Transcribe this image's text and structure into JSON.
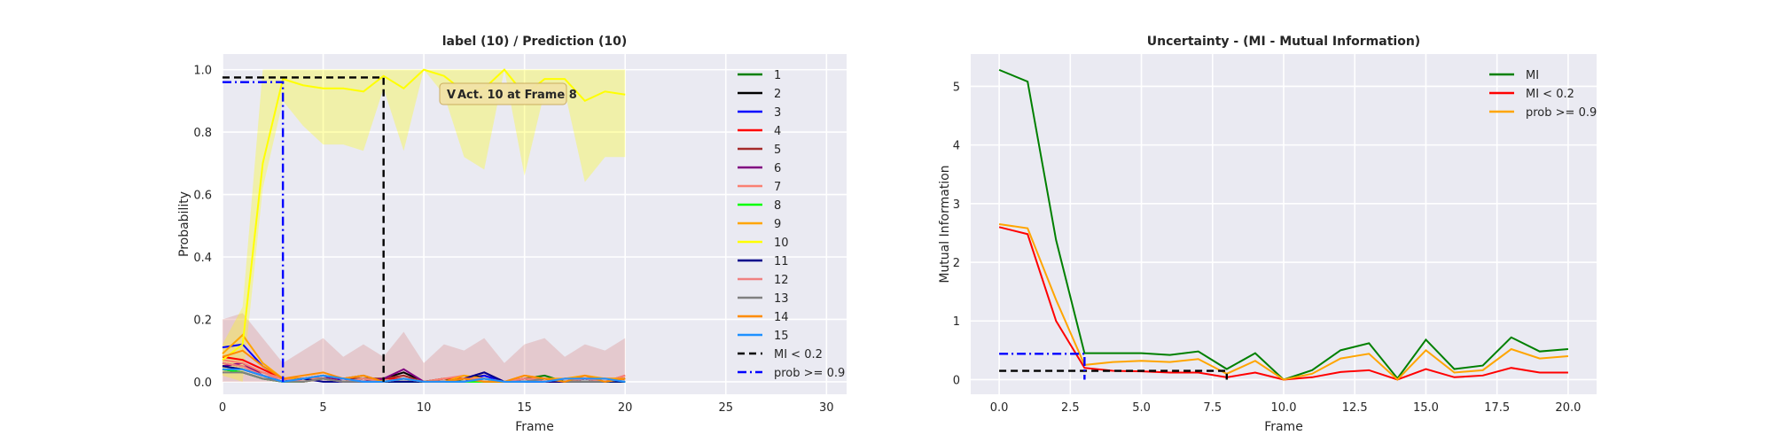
{
  "chart_data": [
    {
      "type": "line",
      "title": "label (10) / Prediction (10)",
      "xlabel": "Frame",
      "ylabel": "Probability",
      "xlim": [
        0,
        31
      ],
      "ylim": [
        -0.04,
        1.05
      ],
      "xticks": [
        "0",
        "5",
        "10",
        "15",
        "20",
        "25",
        "30"
      ],
      "xtick_values": [
        0,
        5,
        10,
        15,
        20,
        25,
        30
      ],
      "yticks": [
        "0.0",
        "0.2",
        "0.4",
        "0.6",
        "0.8",
        "1.0"
      ],
      "ytick_values": [
        0,
        0.2,
        0.4,
        0.6,
        0.8,
        1.0
      ],
      "grid": true,
      "legend_position": "right-outside",
      "annotation": {
        "badge": "V",
        "text": "Act. 10 at Frame 8",
        "x": 8
      },
      "x": [
        0,
        1,
        2,
        3,
        4,
        5,
        6,
        7,
        8,
        9,
        10,
        11,
        12,
        13,
        14,
        15,
        16,
        17,
        18,
        19,
        20
      ],
      "series": [
        {
          "name": "1",
          "color": "#008000",
          "values": [
            0.05,
            0.04,
            0.02,
            0,
            0.01,
            0.02,
            0.01,
            0.02,
            0,
            0.01,
            0,
            0.01,
            0,
            0.01,
            0,
            0.01,
            0.02,
            0,
            0.01,
            0,
            0.01
          ]
        },
        {
          "name": "2",
          "color": "#000000",
          "values": [
            0.04,
            0.03,
            0.01,
            0,
            0.01,
            0.01,
            0,
            0.01,
            0.01,
            0.03,
            0,
            0,
            0.01,
            0.02,
            0,
            0.01,
            0,
            0.01,
            0.01,
            0,
            0.01
          ]
        },
        {
          "name": "3",
          "color": "#0000ff",
          "values": [
            0.11,
            0.12,
            0.05,
            0.01,
            0.01,
            0.02,
            0,
            0.01,
            0,
            0,
            0,
            0,
            0,
            0.02,
            0,
            0,
            0,
            0,
            0.01,
            0,
            0.01
          ]
        },
        {
          "name": "4",
          "color": "#ff0000",
          "values": [
            0.08,
            0.07,
            0.04,
            0.01,
            0,
            0.01,
            0.01,
            0,
            0.01,
            0.01,
            0,
            0.01,
            0.01,
            0,
            0,
            0.01,
            0,
            0,
            0.01,
            0,
            0.02
          ]
        },
        {
          "name": "5",
          "color": "#a52a2a",
          "values": [
            0.06,
            0.05,
            0.03,
            0.01,
            0.01,
            0.01,
            0.01,
            0.01,
            0.01,
            0.02,
            0,
            0,
            0.01,
            0.01,
            0,
            0.01,
            0.01,
            0,
            0.01,
            0.01,
            0.01
          ]
        },
        {
          "name": "6",
          "color": "#800080",
          "values": [
            0.05,
            0.06,
            0.02,
            0,
            0.01,
            0.01,
            0.01,
            0,
            0.01,
            0.04,
            0,
            0,
            0.01,
            0.03,
            0,
            0,
            0.01,
            0,
            0.01,
            0,
            0.01
          ]
        },
        {
          "name": "7",
          "color": "#fa8072",
          "values": [
            0.07,
            0.06,
            0.03,
            0.01,
            0.01,
            0.01,
            0,
            0.01,
            0,
            0.01,
            0,
            0.01,
            0.02,
            0,
            0,
            0.01,
            0.01,
            0,
            0.01,
            0,
            0.02
          ]
        },
        {
          "name": "8",
          "color": "#00ff00",
          "values": [
            0.04,
            0.03,
            0.01,
            0,
            0,
            0.01,
            0,
            0.01,
            0,
            0,
            0,
            0,
            0,
            0,
            0,
            0,
            0.01,
            0,
            0,
            0,
            0
          ]
        },
        {
          "name": "9",
          "color": "#ffa500",
          "values": [
            0.09,
            0.15,
            0.06,
            0.01,
            0.01,
            0.02,
            0.01,
            0.02,
            0,
            0.01,
            0,
            0,
            0.02,
            0.01,
            0,
            0.02,
            0.01,
            0.01,
            0.02,
            0.01,
            0.01
          ]
        },
        {
          "name": "10",
          "color": "#ffff00",
          "values": [
            0.07,
            0.12,
            0.7,
            0.97,
            0.95,
            0.94,
            0.94,
            0.93,
            0.98,
            0.94,
            1.0,
            0.98,
            0.93,
            0.94,
            1.0,
            0.92,
            0.97,
            0.97,
            0.9,
            0.93,
            0.92
          ]
        },
        {
          "name": "11",
          "color": "#00008b",
          "values": [
            0.05,
            0.04,
            0.02,
            0,
            0.01,
            0,
            0,
            0,
            0,
            0,
            0,
            0,
            0.01,
            0.03,
            0,
            0,
            0,
            0,
            0,
            0,
            0
          ]
        },
        {
          "name": "12",
          "color": "#f08080",
          "values": [
            0.06,
            0.05,
            0.02,
            0.01,
            0,
            0.01,
            0,
            0.01,
            0,
            0.01,
            0,
            0,
            0.01,
            0.01,
            0,
            0.01,
            0,
            0.01,
            0.01,
            0,
            0.01
          ]
        },
        {
          "name": "13",
          "color": "#808080",
          "values": [
            0.03,
            0.03,
            0.01,
            0,
            0,
            0.01,
            0,
            0,
            0,
            0.01,
            0,
            0,
            0,
            0.01,
            0,
            0,
            0.01,
            0,
            0,
            0,
            0.01
          ]
        },
        {
          "name": "14",
          "color": "#ff8c00",
          "values": [
            0.08,
            0.1,
            0.05,
            0.01,
            0.02,
            0.03,
            0.01,
            0.02,
            0,
            0.01,
            0,
            0,
            0.01,
            0,
            0,
            0.02,
            0.01,
            0,
            0.02,
            0,
            0.01
          ]
        },
        {
          "name": "15",
          "color": "#1e90ff",
          "values": [
            0.04,
            0.04,
            0.02,
            0,
            0.01,
            0.02,
            0.01,
            0,
            0,
            0.01,
            0,
            0,
            0,
            0.01,
            0,
            0,
            0,
            0.01,
            0.01,
            0.01,
            0
          ]
        }
      ],
      "band_upper": [
        0.12,
        0.24,
        1.0,
        1.0,
        1.0,
        1.0,
        1.0,
        1.0,
        1.0,
        1.0,
        1.0,
        1.0,
        1.0,
        1.0,
        1.0,
        1.0,
        1.0,
        1.0,
        1.0,
        1.0,
        1.0
      ],
      "band_lower": [
        0.02,
        0.0,
        0.62,
        0.9,
        0.82,
        0.76,
        0.76,
        0.74,
        0.94,
        0.74,
        1.0,
        0.92,
        0.72,
        0.68,
        1.0,
        0.66,
        0.93,
        0.93,
        0.64,
        0.72,
        0.72
      ],
      "noise_band_upper": [
        0.2,
        0.22,
        0.14,
        0.06,
        0.1,
        0.14,
        0.08,
        0.12,
        0.08,
        0.16,
        0.06,
        0.12,
        0.1,
        0.14,
        0.06,
        0.12,
        0.14,
        0.08,
        0.12,
        0.1,
        0.14
      ],
      "thresholds": [
        {
          "name": "MI < 0.2",
          "color": "#000000",
          "style": "dashed",
          "level": 0.975,
          "from": 0,
          "to": 8
        },
        {
          "name": "prob >= 0.9",
          "color": "#0000ff",
          "style": "dashdot",
          "level": 0.96,
          "from": 0,
          "to": 3
        }
      ]
    },
    {
      "type": "line",
      "title": "Uncertainty - (MI - Mutual Information)",
      "xlabel": "Frame",
      "ylabel": "Mutual Information",
      "xlim": [
        -1,
        21
      ],
      "ylim": [
        -0.25,
        5.55
      ],
      "xticks": [
        "0.0",
        "2.5",
        "5.0",
        "7.5",
        "10.0",
        "12.5",
        "15.0",
        "17.5",
        "20.0"
      ],
      "xtick_values": [
        0,
        2.5,
        5,
        7.5,
        10,
        12.5,
        15,
        17.5,
        20
      ],
      "yticks": [
        "0",
        "1",
        "2",
        "3",
        "4",
        "5"
      ],
      "ytick_values": [
        0,
        1,
        2,
        3,
        4,
        5
      ],
      "grid": true,
      "legend_position": "top-right",
      "x": [
        0,
        1,
        2,
        3,
        4,
        5,
        6,
        7,
        8,
        9,
        10,
        11,
        12,
        13,
        14,
        15,
        16,
        17,
        18,
        19,
        20
      ],
      "series": [
        {
          "name": "MI",
          "color": "#008000",
          "values": [
            5.28,
            5.08,
            2.38,
            0.45,
            0.45,
            0.45,
            0.42,
            0.48,
            0.18,
            0.45,
            0.0,
            0.16,
            0.5,
            0.62,
            0.02,
            0.68,
            0.18,
            0.24,
            0.72,
            0.48,
            0.52
          ]
        },
        {
          "name": "MI < 0.2",
          "color": "#ff0000",
          "values": [
            2.6,
            2.48,
            1.0,
            0.2,
            0.15,
            0.14,
            0.12,
            0.12,
            0.04,
            0.12,
            0.0,
            0.04,
            0.13,
            0.16,
            0.0,
            0.18,
            0.04,
            0.07,
            0.2,
            0.12,
            0.12
          ]
        },
        {
          "name": "prob >= 0.9",
          "color": "#ffa500",
          "values": [
            2.65,
            2.58,
            1.36,
            0.25,
            0.3,
            0.32,
            0.3,
            0.35,
            0.1,
            0.32,
            0.0,
            0.1,
            0.36,
            0.44,
            0.0,
            0.5,
            0.12,
            0.16,
            0.52,
            0.36,
            0.4
          ]
        }
      ],
      "thresholds": [
        {
          "color": "#000000",
          "style": "dashed",
          "level": 0.15,
          "from": 0,
          "to": 8
        },
        {
          "color": "#0000ff",
          "style": "dashdot",
          "level": 0.44,
          "from": 0,
          "to": 3
        }
      ]
    }
  ]
}
